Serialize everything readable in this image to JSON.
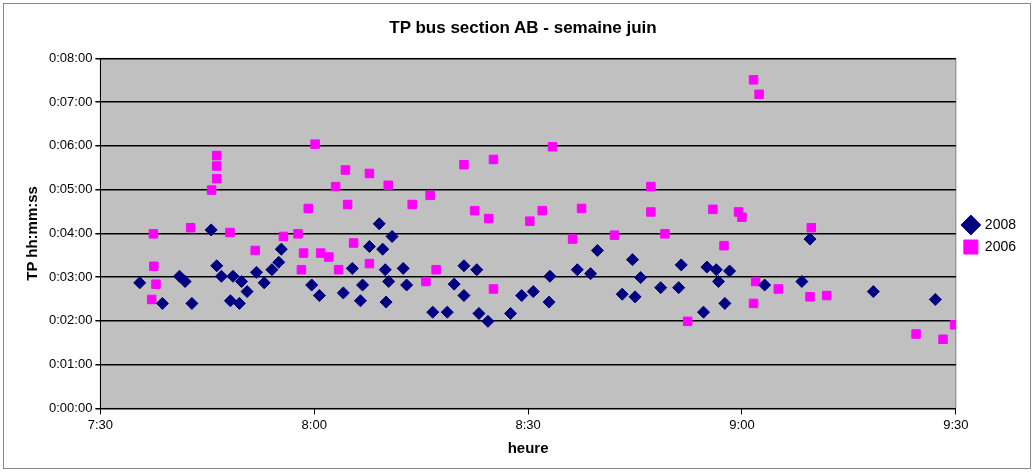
{
  "chart_data": {
    "type": "scatter",
    "title": "TP bus section AB - semaine juin",
    "xlabel": "heure",
    "ylabel": "TP hh:mm:ss",
    "xlim": [
      7.5,
      9.5
    ],
    "xticks": [
      {
        "value": 7.5,
        "label": "7:30"
      },
      {
        "value": 8,
        "label": "8:00"
      },
      {
        "value": 8.5,
        "label": "8:30"
      },
      {
        "value": 9,
        "label": "9:00"
      },
      {
        "value": 9.5,
        "label": "9:30"
      }
    ],
    "ylim": [
      0,
      8
    ],
    "yticks": [
      {
        "value": 0,
        "label": "0:00:00"
      },
      {
        "value": 1,
        "label": "0:01:00"
      },
      {
        "value": 2,
        "label": "0:02:00"
      },
      {
        "value": 3,
        "label": "0:03:00"
      },
      {
        "value": 4,
        "label": "0:04:00"
      },
      {
        "value": 5,
        "label": "0:05:00"
      },
      {
        "value": 6,
        "label": "0:06:00"
      },
      {
        "value": 7,
        "label": "0:07:00"
      },
      {
        "value": 8,
        "label": "0:08:00"
      }
    ],
    "grid": "y",
    "legend": "right",
    "series": [
      {
        "name": "2008",
        "color": "#000080",
        "marker": "diamond",
        "x": [
          7.592,
          7.645,
          7.685,
          7.698,
          7.714,
          7.759,
          7.772,
          7.783,
          7.804,
          7.81,
          7.83,
          7.825,
          7.843,
          7.865,
          7.883,
          7.901,
          7.917,
          7.923,
          7.994,
          8.012,
          8.068,
          8.089,
          8.113,
          8.108,
          8.129,
          8.152,
          8.168,
          8.182,
          8.16,
          8.166,
          8.174,
          8.208,
          8.216,
          8.277,
          8.311,
          8.327,
          8.35,
          8.35,
          8.38,
          8.385,
          8.406,
          8.459,
          8.485,
          8.512,
          8.549,
          8.551,
          8.615,
          8.646,
          8.662,
          8.72,
          8.744,
          8.763,
          8.75,
          8.81,
          8.858,
          8.852,
          8.91,
          8.918,
          8.94,
          8.945,
          8.971,
          8.96,
          9.053,
          9.14,
          9.159,
          9.307,
          9.452
        ],
        "values": [
          2.87,
          2.4,
          3.02,
          2.9,
          2.4,
          4.08,
          3.26,
          3.02,
          2.46,
          3.02,
          2.9,
          2.4,
          2.67,
          3.11,
          2.87,
          3.17,
          3.34,
          3.64,
          2.82,
          2.58,
          2.64,
          3.2,
          2.82,
          2.46,
          3.7,
          4.22,
          2.43,
          3.93,
          3.64,
          3.17,
          2.9,
          3.2,
          2.82,
          2.2,
          2.2,
          2.84,
          3.26,
          2.58,
          3.17,
          2.17,
          1.99,
          2.17,
          2.58,
          2.67,
          2.43,
          3.02,
          3.17,
          3.08,
          3.61,
          2.61,
          3.4,
          2.99,
          2.55,
          2.76,
          3.28,
          2.76,
          2.2,
          3.23,
          3.17,
          2.9,
          3.14,
          2.4,
          2.82,
          2.9,
          3.87,
          2.67,
          2.49
        ]
      },
      {
        "name": "2006",
        "color": "#ff00ff",
        "marker": "square",
        "x": [
          7.624,
          7.625,
          7.62,
          7.63,
          7.711,
          7.76,
          7.772,
          7.772,
          7.772,
          7.803,
          7.862,
          7.928,
          7.962,
          8.002,
          7.986,
          7.975,
          7.97,
          8.015,
          8.034,
          8.057,
          8.073,
          8.05,
          8.078,
          8.092,
          8.129,
          8.129,
          8.173,
          8.229,
          8.271,
          8.261,
          8.285,
          8.35,
          8.375,
          8.408,
          8.419,
          8.419,
          8.504,
          8.533,
          8.557,
          8.625,
          8.604,
          8.702,
          8.787,
          8.787,
          8.82,
          8.932,
          8.958,
          8.873,
          8.992,
          9.0,
          9.027,
          9.04,
          9.032,
          9.027,
          9.085,
          9.162,
          9.159,
          9.198,
          9.407,
          9.47,
          9.497
        ],
        "values": [
          3.99,
          3.25,
          2.49,
          2.84,
          4.13,
          4.99,
          5.25,
          5.54,
          5.78,
          4.02,
          3.61,
          3.93,
          3.99,
          6.04,
          4.57,
          3.55,
          3.17,
          3.55,
          3.46,
          3.17,
          5.45,
          5.07,
          4.66,
          3.78,
          5.37,
          3.31,
          5.1,
          4.66,
          4.87,
          2.9,
          3.17,
          5.57,
          4.52,
          4.34,
          5.69,
          2.73,
          4.28,
          4.52,
          5.98,
          4.57,
          3.87,
          3.96,
          5.07,
          4.49,
          3.99,
          4.55,
          3.72,
          1.99,
          4.49,
          4.37,
          7.51,
          7.18,
          2.9,
          2.4,
          2.73,
          4.13,
          2.55,
          2.58,
          1.7,
          1.58,
          1.91
        ]
      }
    ]
  }
}
